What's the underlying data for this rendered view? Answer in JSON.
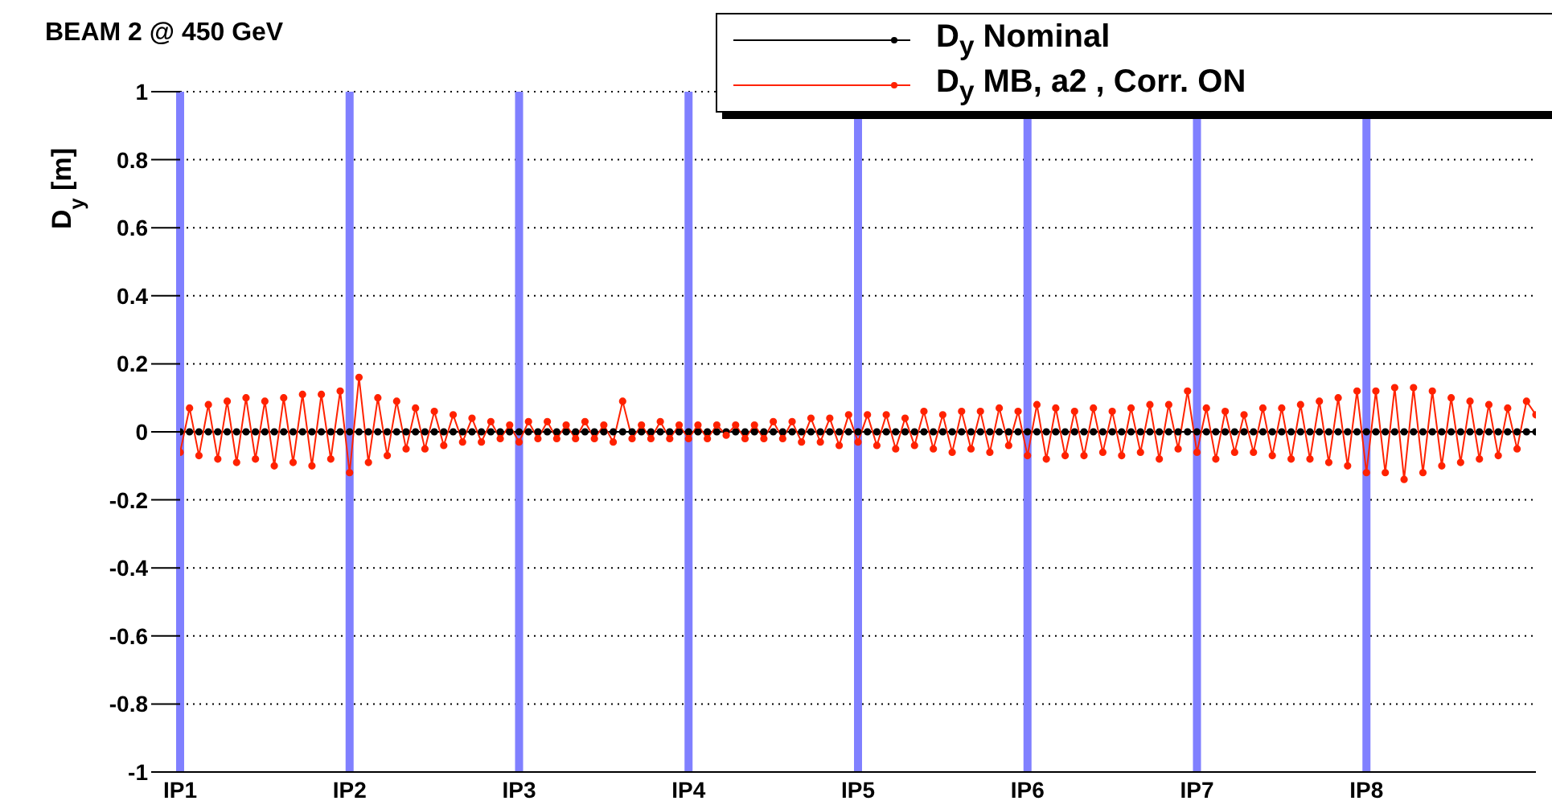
{
  "chart_data": {
    "type": "line",
    "title": "BEAM 2 @ 450 GeV",
    "ylabel": "D$_{y}$ [m]",
    "categories": [
      "IP1",
      null,
      null,
      null,
      null,
      null,
      null,
      null,
      null,
      null,
      null,
      null,
      null,
      null,
      null,
      null,
      null,
      null,
      "IP2",
      null,
      null,
      null,
      null,
      null,
      null,
      null,
      null,
      null,
      null,
      null,
      null,
      null,
      null,
      null,
      null,
      null,
      "IP3",
      null,
      null,
      null,
      null,
      null,
      null,
      null,
      null,
      null,
      null,
      null,
      null,
      null,
      null,
      null,
      null,
      null,
      "IP4",
      null,
      null,
      null,
      null,
      null,
      null,
      null,
      null,
      null,
      null,
      null,
      null,
      null,
      null,
      null,
      null,
      null,
      "IP5",
      null,
      null,
      null,
      null,
      null,
      null,
      null,
      null,
      null,
      null,
      null,
      null,
      null,
      null,
      null,
      null,
      null,
      "IP6",
      null,
      null,
      null,
      null,
      null,
      null,
      null,
      null,
      null,
      null,
      null,
      null,
      null,
      null,
      null,
      null,
      null,
      "IP7",
      null,
      null,
      null,
      null,
      null,
      null,
      null,
      null,
      null,
      null,
      null,
      null,
      null,
      null,
      null,
      null,
      null,
      "IP8",
      null,
      null,
      null,
      null,
      null,
      null,
      null,
      null,
      null,
      null,
      null,
      null,
      null,
      null,
      null,
      null,
      null,
      null
    ],
    "ylim": [
      -1,
      1
    ],
    "yticks": [
      -1,
      -0.8,
      -0.6,
      -0.4,
      -0.2,
      0,
      0.2,
      0.4,
      0.6,
      0.8,
      1
    ],
    "grid": true,
    "legend": "top right",
    "marker": "circle",
    "line_style": "solid",
    "series": [
      {
        "name": "D$_{y}$ Nominal",
        "color": "#000000",
        "values": [
          0,
          0,
          0,
          0,
          0,
          0,
          0,
          0,
          0,
          0,
          0,
          0,
          0,
          0,
          0,
          0,
          0,
          0,
          0,
          0,
          0,
          0,
          0,
          0,
          0,
          0,
          0,
          0,
          0,
          0,
          0,
          0,
          0,
          0,
          0,
          0,
          0,
          0,
          0,
          0,
          0,
          0,
          0,
          0,
          0,
          0,
          0,
          0,
          0,
          0,
          0,
          0,
          0,
          0,
          0,
          0,
          0,
          0,
          0,
          0,
          0,
          0,
          0,
          0,
          0,
          0,
          0,
          0,
          0,
          0,
          0,
          0,
          0,
          0,
          0,
          0,
          0,
          0,
          0,
          0,
          0,
          0,
          0,
          0,
          0,
          0,
          0,
          0,
          0,
          0,
          0,
          0,
          0,
          0,
          0,
          0,
          0,
          0,
          0,
          0,
          0,
          0,
          0,
          0,
          0,
          0,
          0,
          0,
          0,
          0,
          0,
          0,
          0,
          0,
          0,
          0,
          0,
          0,
          0,
          0,
          0,
          0,
          0,
          0,
          0,
          0,
          0,
          0,
          0,
          0,
          0,
          0,
          0,
          0,
          0,
          0,
          0,
          0,
          0,
          0,
          0,
          0,
          0,
          0,
          0
        ]
      },
      {
        "name": "D$_{y}$ MB, a2 , Corr. ON",
        "color": "#ff2200",
        "values": [
          -0.06,
          0.07,
          -0.07,
          0.08,
          -0.08,
          0.09,
          -0.09,
          0.1,
          -0.08,
          0.09,
          -0.1,
          0.1,
          -0.09,
          0.11,
          -0.1,
          0.11,
          -0.08,
          0.12,
          -0.12,
          0.16,
          -0.09,
          0.1,
          -0.07,
          0.09,
          -0.05,
          0.07,
          -0.05,
          0.06,
          -0.04,
          0.05,
          -0.03,
          0.04,
          -0.03,
          0.03,
          -0.02,
          0.02,
          -0.03,
          0.03,
          -0.02,
          0.03,
          -0.02,
          0.02,
          -0.02,
          0.03,
          -0.02,
          0.02,
          -0.03,
          0.09,
          -0.02,
          0.02,
          -0.02,
          0.03,
          -0.02,
          0.02,
          -0.02,
          0.02,
          -0.02,
          0.02,
          -0.01,
          0.02,
          -0.02,
          0.02,
          -0.02,
          0.03,
          -0.02,
          0.03,
          -0.03,
          0.04,
          -0.03,
          0.04,
          -0.04,
          0.05,
          -0.03,
          0.05,
          -0.04,
          0.05,
          -0.05,
          0.04,
          -0.04,
          0.06,
          -0.05,
          0.05,
          -0.06,
          0.06,
          -0.05,
          0.06,
          -0.06,
          0.07,
          -0.04,
          0.06,
          -0.07,
          0.08,
          -0.08,
          0.07,
          -0.07,
          0.06,
          -0.07,
          0.07,
          -0.06,
          0.06,
          -0.07,
          0.07,
          -0.06,
          0.08,
          -0.08,
          0.08,
          -0.05,
          0.12,
          -0.06,
          0.07,
          -0.08,
          0.06,
          -0.06,
          0.05,
          -0.06,
          0.07,
          -0.07,
          0.07,
          -0.08,
          0.08,
          -0.08,
          0.09,
          -0.09,
          0.1,
          -0.1,
          0.12,
          -0.12,
          0.12,
          -0.12,
          0.13,
          -0.14,
          0.13,
          -0.12,
          0.12,
          -0.1,
          0.1,
          -0.09,
          0.09,
          -0.08,
          0.08,
          -0.07,
          0.07,
          -0.05,
          0.09,
          0.05
        ]
      }
    ]
  }
}
